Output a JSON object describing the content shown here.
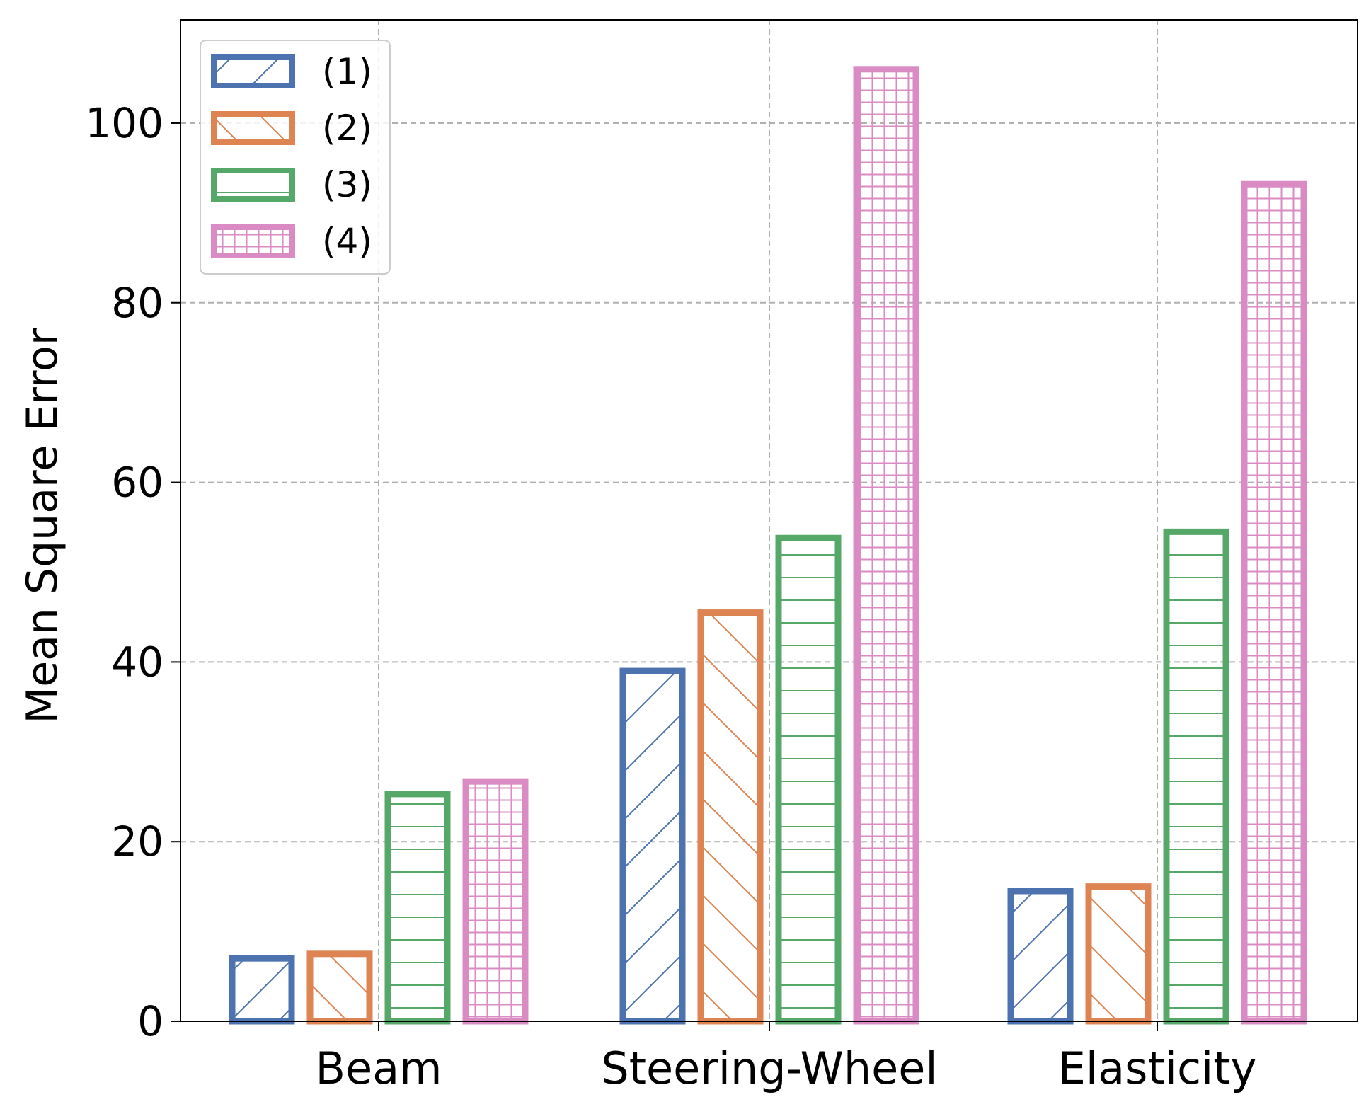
{
  "chart_data": {
    "type": "bar",
    "title": "",
    "xlabel": "",
    "ylabel": "Mean Square Error",
    "categories": [
      "Beam",
      "Steering-Wheel",
      "Elasticity"
    ],
    "series": [
      {
        "name": "(1)",
        "color": "#4c72b0",
        "hatch": "forward-diagonal",
        "values": [
          7,
          39,
          14.5
        ]
      },
      {
        "name": "(2)",
        "color": "#dd8452",
        "hatch": "back-diagonal",
        "values": [
          7.5,
          45.5,
          15
        ]
      },
      {
        "name": "(3)",
        "color": "#55a868",
        "hatch": "horizontal",
        "values": [
          25.3,
          53.8,
          54.5
        ]
      },
      {
        "name": "(4)",
        "color": "#da8bc3",
        "hatch": "grid",
        "values": [
          26.7,
          106,
          93.2
        ]
      }
    ],
    "ylim": [
      0,
      111.5
    ],
    "yticks": [
      "0",
      "20",
      "40",
      "60",
      "80",
      "100"
    ],
    "ytick_values": [
      0,
      20,
      40,
      60,
      80,
      100
    ],
    "grid": true,
    "legend_position": "upper-left"
  }
}
